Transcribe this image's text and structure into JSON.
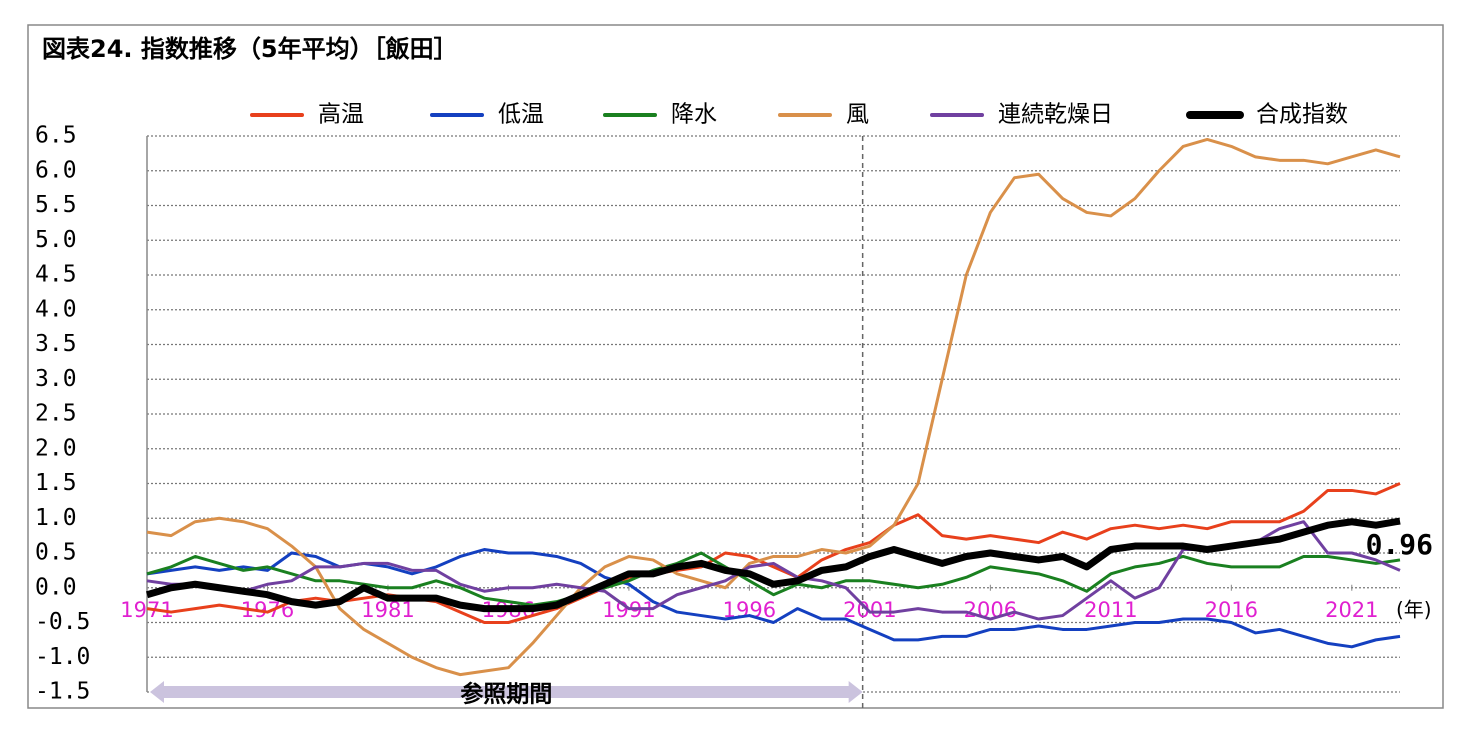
{
  "chart_data": {
    "type": "line",
    "title": "図表24. 指数推移（5年平均）［飯田］",
    "x_unit_label": "(年)",
    "x": [
      1971,
      1972,
      1973,
      1974,
      1975,
      1976,
      1977,
      1978,
      1979,
      1980,
      1981,
      1982,
      1983,
      1984,
      1985,
      1986,
      1987,
      1988,
      1989,
      1990,
      1991,
      1992,
      1993,
      1994,
      1995,
      1996,
      1997,
      1998,
      1999,
      2000,
      2001,
      2002,
      2003,
      2004,
      2005,
      2006,
      2007,
      2008,
      2009,
      2010,
      2011,
      2012,
      2013,
      2014,
      2015,
      2016,
      2017,
      2018,
      2019,
      2020,
      2021,
      2022,
      2023
    ],
    "xlim": [
      1971,
      2023
    ],
    "xticks": [
      1971,
      1976,
      1981,
      1986,
      1991,
      1996,
      2001,
      2006,
      2011,
      2016,
      2021
    ],
    "ylim": [
      -1.5,
      6.5
    ],
    "yticks": [
      6.5,
      {
        "value": 6,
        "label": "6.0"
      },
      5.5,
      {
        "value": 5,
        "label": "5.0"
      },
      4.5,
      {
        "value": 4,
        "label": "4.0"
      },
      3.5,
      {
        "value": 3,
        "label": "3.0"
      },
      2.5,
      {
        "value": 2,
        "label": "2.0"
      },
      1.5,
      {
        "value": 1,
        "label": "1.0"
      },
      0.5,
      {
        "value": 0,
        "label": "0.0"
      },
      -0.5,
      {
        "value": -1,
        "label": "-1.0"
      },
      -1.5
    ],
    "grid": true,
    "legend_position": "top",
    "reference_period": {
      "label": "参照期間",
      "range": [
        1971,
        2000.7
      ]
    },
    "series": [
      {
        "name": "高温",
        "color": "#e8401c",
        "values": [
          -0.3,
          -0.35,
          -0.3,
          -0.25,
          -0.3,
          -0.35,
          -0.2,
          -0.15,
          -0.2,
          -0.15,
          -0.1,
          -0.15,
          -0.2,
          -0.35,
          -0.5,
          -0.5,
          -0.4,
          -0.3,
          -0.15,
          0.0,
          0.15,
          0.2,
          0.25,
          0.3,
          0.5,
          0.45,
          0.3,
          0.15,
          0.4,
          0.55,
          0.65,
          0.9,
          1.05,
          0.75,
          0.7,
          0.75,
          0.7,
          0.65,
          0.8,
          0.7,
          0.85,
          0.9,
          0.85,
          0.9,
          0.85,
          0.95,
          0.95,
          0.95,
          1.1,
          1.4,
          1.4,
          1.35,
          1.5
        ]
      },
      {
        "name": "低温",
        "color": "#1440c0",
        "values": [
          0.2,
          0.25,
          0.3,
          0.25,
          0.3,
          0.25,
          0.5,
          0.45,
          0.3,
          0.35,
          0.3,
          0.2,
          0.3,
          0.45,
          0.55,
          0.5,
          0.5,
          0.45,
          0.35,
          0.15,
          0.05,
          -0.2,
          -0.35,
          -0.4,
          -0.45,
          -0.4,
          -0.5,
          -0.3,
          -0.45,
          -0.45,
          -0.6,
          -0.75,
          -0.75,
          -0.7,
          -0.7,
          -0.6,
          -0.6,
          -0.55,
          -0.6,
          -0.6,
          -0.55,
          -0.5,
          -0.5,
          -0.45,
          -0.45,
          -0.5,
          -0.65,
          -0.6,
          -0.7,
          -0.8,
          -0.85,
          -0.75,
          -0.7
        ]
      },
      {
        "name": "降水",
        "color": "#1a8020",
        "values": [
          0.2,
          0.3,
          0.45,
          0.35,
          0.25,
          0.3,
          0.2,
          0.1,
          0.1,
          0.05,
          0.0,
          0.0,
          0.1,
          0.0,
          -0.15,
          -0.2,
          -0.25,
          -0.2,
          -0.1,
          0.0,
          0.1,
          0.25,
          0.35,
          0.5,
          0.3,
          0.1,
          -0.1,
          0.05,
          0.0,
          0.1,
          0.1,
          0.05,
          0.0,
          0.05,
          0.15,
          0.3,
          0.25,
          0.2,
          0.1,
          -0.05,
          0.2,
          0.3,
          0.35,
          0.45,
          0.35,
          0.3,
          0.3,
          0.3,
          0.45,
          0.45,
          0.4,
          0.35,
          0.4
        ]
      },
      {
        "name": "風",
        "color": "#d9904a",
        "values": [
          0.8,
          0.75,
          0.95,
          1.0,
          0.95,
          0.85,
          0.6,
          0.3,
          -0.3,
          -0.6,
          -0.8,
          -1.0,
          -1.15,
          -1.25,
          -1.2,
          -1.15,
          -0.8,
          -0.4,
          0.0,
          0.3,
          0.45,
          0.4,
          0.2,
          0.1,
          0.0,
          0.35,
          0.45,
          0.45,
          0.55,
          0.5,
          0.6,
          0.9,
          1.5,
          3.0,
          4.5,
          5.4,
          5.9,
          5.95,
          5.6,
          5.4,
          5.35,
          5.6,
          6.0,
          6.35,
          6.45,
          6.35,
          6.2,
          6.15,
          6.15,
          6.1,
          6.2,
          6.3,
          6.2
        ]
      },
      {
        "name": "連続乾燥日",
        "color": "#7040a0",
        "values": [
          0.1,
          0.05,
          0.05,
          0.0,
          -0.05,
          0.05,
          0.1,
          0.3,
          0.3,
          0.35,
          0.35,
          0.25,
          0.25,
          0.05,
          -0.05,
          0.0,
          0.0,
          0.05,
          0.0,
          -0.05,
          -0.3,
          -0.3,
          -0.1,
          0.0,
          0.1,
          0.3,
          0.35,
          0.15,
          0.1,
          0.0,
          -0.35,
          -0.35,
          -0.3,
          -0.35,
          -0.35,
          -0.45,
          -0.35,
          -0.45,
          -0.4,
          -0.15,
          0.1,
          -0.15,
          0.0,
          0.55,
          0.55,
          0.6,
          0.65,
          0.85,
          0.95,
          0.5,
          0.5,
          0.4,
          0.25
        ]
      },
      {
        "name": "合成指数",
        "color": "#000000",
        "values": [
          -0.1,
          0.0,
          0.05,
          0.0,
          -0.05,
          -0.1,
          -0.2,
          -0.25,
          -0.2,
          0.0,
          -0.15,
          -0.15,
          -0.15,
          -0.25,
          -0.3,
          -0.3,
          -0.3,
          -0.25,
          -0.1,
          0.05,
          0.2,
          0.2,
          0.3,
          0.35,
          0.25,
          0.2,
          0.05,
          0.1,
          0.25,
          0.3,
          0.45,
          0.55,
          0.45,
          0.35,
          0.45,
          0.5,
          0.45,
          0.4,
          0.45,
          0.3,
          0.55,
          0.6,
          0.6,
          0.6,
          0.55,
          0.6,
          0.65,
          0.7,
          0.8,
          0.9,
          0.95,
          0.9,
          0.96
        ]
      }
    ]
  }
}
